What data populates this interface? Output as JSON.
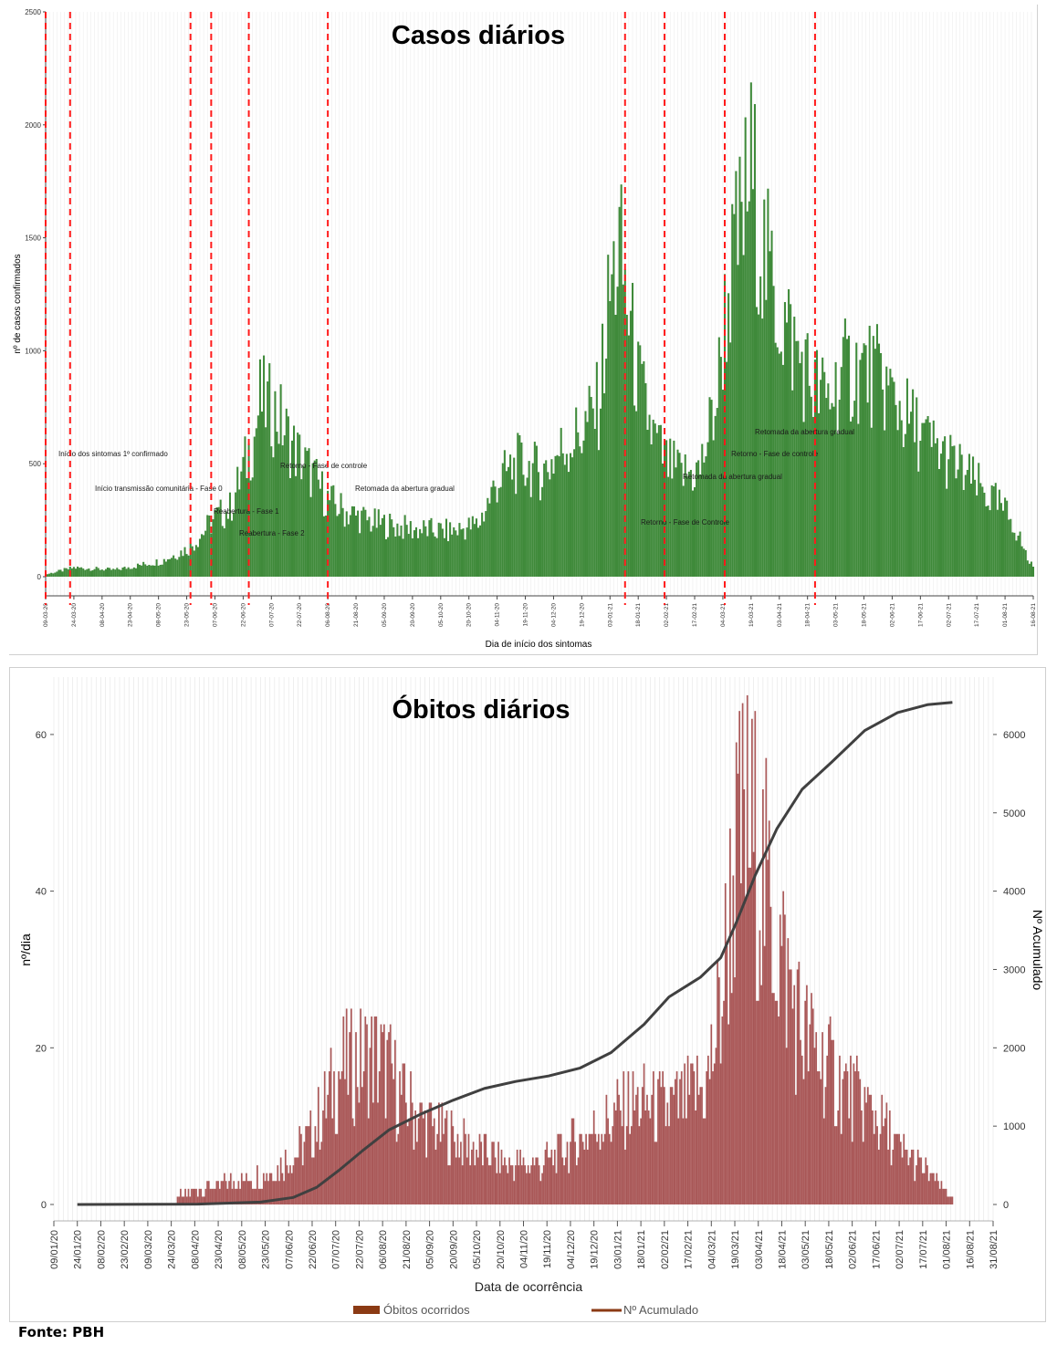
{
  "source": "Fonte: PBH",
  "chart_data": [
    {
      "type": "bar",
      "title": "Casos diários",
      "xlabel": "Dia de início dos sintomas",
      "ylabel": "nº de casos confirmados",
      "ylim": [
        0,
        2500
      ],
      "yticks": [
        0,
        500,
        1000,
        1500,
        2000,
        2500
      ],
      "xlim": [
        "2020-03-09",
        "2021-08-16"
      ],
      "grid": true,
      "color": "#3f8a3a",
      "xticks": [
        "09-03-20",
        "24-03-20",
        "08-04-20",
        "23-04-20",
        "08-05-20",
        "23-05-20",
        "07-06-20",
        "22-06-20",
        "07-07-20",
        "22-07-20",
        "06-08-20",
        "21-08-20",
        "05-09-20",
        "20-09-20",
        "05-10-20",
        "20-10-20",
        "04-11-20",
        "19-11-20",
        "04-12-20",
        "19-12-20",
        "03-01-21",
        "18-01-21",
        "02-02-21",
        "17-02-21",
        "04-03-21",
        "19-03-21",
        "03-04-21",
        "18-04-21",
        "03-05-21",
        "18-05-21",
        "02-06-21",
        "17-06-21",
        "02-07-21",
        "17-07-21",
        "01-08-21",
        "16-08-21"
      ],
      "series": [
        {
          "x": [
            "2020-03-09",
            "2020-03-24",
            "2020-04-15",
            "2020-05-10",
            "2020-05-25",
            "2020-06-07",
            "2020-06-15",
            "2020-06-28",
            "2020-07-01",
            "2020-07-10",
            "2020-07-18",
            "2020-07-28",
            "2020-08-06",
            "2020-08-15",
            "2020-08-30",
            "2020-09-20",
            "2020-10-10",
            "2020-10-25",
            "2020-11-04",
            "2020-11-15",
            "2020-11-28",
            "2020-12-08",
            "2020-12-20",
            "2020-12-28",
            "2021-01-03",
            "2021-01-08",
            "2021-01-18",
            "2021-01-26",
            "2021-02-02",
            "2021-02-10",
            "2021-02-20",
            "2021-03-01",
            "2021-03-05",
            "2021-03-10",
            "2021-03-15",
            "2021-03-19",
            "2021-03-25",
            "2021-04-02",
            "2021-04-12",
            "2021-04-20",
            "2021-04-28",
            "2021-05-08",
            "2021-05-18",
            "2021-05-28",
            "2021-06-08",
            "2021-06-20",
            "2021-07-02",
            "2021-07-15",
            "2021-07-28",
            "2021-08-05",
            "2021-08-14"
          ],
          "values": [
            10,
            40,
            30,
            70,
            130,
            260,
            300,
            620,
            780,
            720,
            580,
            460,
            340,
            290,
            240,
            210,
            200,
            230,
            420,
            500,
            460,
            560,
            650,
            760,
            1250,
            1450,
            860,
            620,
            500,
            450,
            470,
            800,
            1150,
            1400,
            1600,
            1800,
            1450,
            1200,
            1000,
            860,
            780,
            900,
            920,
            860,
            720,
            600,
            520,
            420,
            320,
            250,
            60
          ]
        }
      ],
      "phase_lines": [
        {
          "date": "2020-03-09",
          "label": "Início dos sintomas 1º confirmado"
        },
        {
          "date": "2020-03-22",
          "label": "Início transmissão comunitária - Fase 0"
        },
        {
          "date": "2020-05-25",
          "label": "Reabertura - Fase 1"
        },
        {
          "date": "2020-06-05",
          "label": "Reabertura - Fase 2"
        },
        {
          "date": "2020-06-25",
          "label": "Retorno - Fase de controle"
        },
        {
          "date": "2020-08-06",
          "label": "Retomada da abertura gradual"
        },
        {
          "date": "2021-01-11",
          "label": "Retorno - Fase de Controle"
        },
        {
          "date": "2021-02-01",
          "label": "Retomada da abertura gradual"
        },
        {
          "date": "2021-03-05",
          "label": "Retorno - Fase de controle"
        },
        {
          "date": "2021-04-22",
          "label": "Retomada da abertura gradual"
        }
      ]
    },
    {
      "type": "bar",
      "title": "Óbitos diários",
      "xlabel": "Data de ocorrência",
      "ylabel": "nº/dia",
      "y2label": "Nº Acumulado",
      "ylim": [
        0,
        65
      ],
      "yticks": [
        0,
        20,
        40,
        60
      ],
      "y2lim": [
        0,
        6500
      ],
      "y2ticks": [
        0,
        1000,
        2000,
        3000,
        4000,
        5000,
        6000
      ],
      "xlim": [
        "2020-01-09",
        "2021-08-31"
      ],
      "grid": true,
      "legend_position": "bottom",
      "xticks": [
        "09/01/20",
        "24/01/20",
        "08/02/20",
        "23/02/20",
        "09/03/20",
        "24/03/20",
        "08/04/20",
        "23/04/20",
        "08/05/20",
        "23/05/20",
        "07/06/20",
        "22/06/20",
        "07/07/20",
        "22/07/20",
        "06/08/20",
        "21/08/20",
        "05/09/20",
        "20/09/20",
        "05/10/20",
        "20/10/20",
        "04/11/20",
        "19/11/20",
        "04/12/20",
        "19/12/20",
        "03/01/21",
        "18/01/21",
        "02/02/21",
        "17/02/21",
        "04/03/21",
        "19/03/21",
        "03/04/21",
        "18/04/21",
        "03/05/21",
        "18/05/21",
        "02/06/21",
        "17/06/21",
        "02/07/21",
        "17/07/21",
        "01/08/21",
        "16/08/21",
        "31/08/21"
      ],
      "series": [
        {
          "name": "Óbitos ocorridos",
          "color": "#8b1a1a",
          "x": [
            "2020-03-28",
            "2020-04-15",
            "2020-05-05",
            "2020-05-25",
            "2020-06-10",
            "2020-06-22",
            "2020-07-01",
            "2020-07-10",
            "2020-07-20",
            "2020-08-01",
            "2020-08-10",
            "2020-08-20",
            "2020-09-05",
            "2020-09-25",
            "2020-10-15",
            "2020-10-30",
            "2020-11-15",
            "2020-12-01",
            "2020-12-15",
            "2020-12-30",
            "2021-01-15",
            "2021-02-01",
            "2021-02-15",
            "2021-03-01",
            "2021-03-10",
            "2021-03-18",
            "2021-03-25",
            "2021-04-02",
            "2021-04-10",
            "2021-04-20",
            "2021-05-01",
            "2021-05-15",
            "2021-06-01",
            "2021-06-15",
            "2021-07-01",
            "2021-07-15",
            "2021-07-25",
            "2021-08-05"
          ],
          "values": [
            1,
            2,
            3,
            4,
            6,
            9,
            13,
            17,
            18,
            19,
            17,
            13,
            10,
            8,
            6,
            5,
            5,
            7,
            9,
            11,
            13,
            12,
            13,
            15,
            25,
            42,
            48,
            45,
            38,
            30,
            22,
            18,
            14,
            12,
            7,
            5,
            3,
            1
          ]
        },
        {
          "name": "Nº Acumulado",
          "color": "#404040",
          "x": [
            "2020-01-24",
            "2020-04-10",
            "2020-05-20",
            "2020-06-10",
            "2020-06-25",
            "2020-07-10",
            "2020-07-25",
            "2020-08-10",
            "2020-08-30",
            "2020-09-20",
            "2020-10-10",
            "2020-10-30",
            "2020-11-20",
            "2020-12-10",
            "2020-12-30",
            "2021-01-20",
            "2021-02-05",
            "2021-02-25",
            "2021-03-10",
            "2021-03-20",
            "2021-04-01",
            "2021-04-15",
            "2021-05-01",
            "2021-05-20",
            "2021-06-10",
            "2021-07-01",
            "2021-07-20",
            "2021-08-05"
          ],
          "values": [
            0,
            5,
            30,
            90,
            220,
            450,
            700,
            950,
            1150,
            1330,
            1480,
            1570,
            1640,
            1740,
            1940,
            2300,
            2650,
            2900,
            3150,
            3600,
            4200,
            4800,
            5300,
            5650,
            6050,
            6280,
            6380,
            6410
          ]
        }
      ]
    }
  ]
}
